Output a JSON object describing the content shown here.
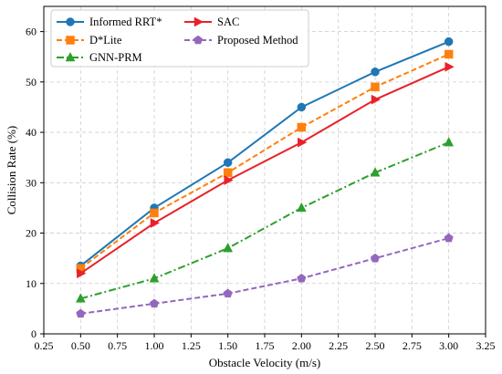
{
  "chart_data": {
    "type": "line",
    "xlabel": "Obstacle Velocity (m/s)",
    "ylabel": "Collision Rate (%)",
    "xlim": [
      0.25,
      3.25
    ],
    "ylim": [
      0,
      65
    ],
    "xticks": [
      "0.25",
      "0.50",
      "0.75",
      "1.00",
      "1.25",
      "1.50",
      "1.75",
      "2.00",
      "2.25",
      "2.50",
      "2.75",
      "3.00",
      "3.25"
    ],
    "yticks": [
      "0",
      "10",
      "20",
      "30",
      "40",
      "50",
      "60"
    ],
    "grid": true,
    "legend_position": "top-left",
    "x": [
      0.5,
      1.0,
      1.5,
      2.0,
      2.5,
      3.0
    ],
    "series": [
      {
        "name": "Informed RRT*",
        "values": [
          13.5,
          25,
          34,
          45,
          52,
          58
        ],
        "color": "#1f77b4",
        "linestyle": "solid",
        "marker": "circle"
      },
      {
        "name": "D*Lite",
        "values": [
          13,
          24,
          32,
          41,
          49,
          55.5
        ],
        "color": "#ff7f0e",
        "linestyle": "dashed",
        "marker": "square"
      },
      {
        "name": "GNN-PRM",
        "values": [
          7,
          11,
          17,
          25,
          32,
          38
        ],
        "color": "#2ca02c",
        "linestyle": "dashdot",
        "marker": "triangle-up"
      },
      {
        "name": "SAC",
        "values": [
          12,
          22,
          30.5,
          38,
          46.5,
          53
        ],
        "color": "#e8222a",
        "linestyle": "solid",
        "marker": "triangle-right"
      },
      {
        "name": "Proposed Method",
        "values": [
          4,
          6,
          8,
          11,
          15,
          19
        ],
        "color": "#9467bd",
        "linestyle": "dashed",
        "marker": "pentagon"
      }
    ]
  }
}
